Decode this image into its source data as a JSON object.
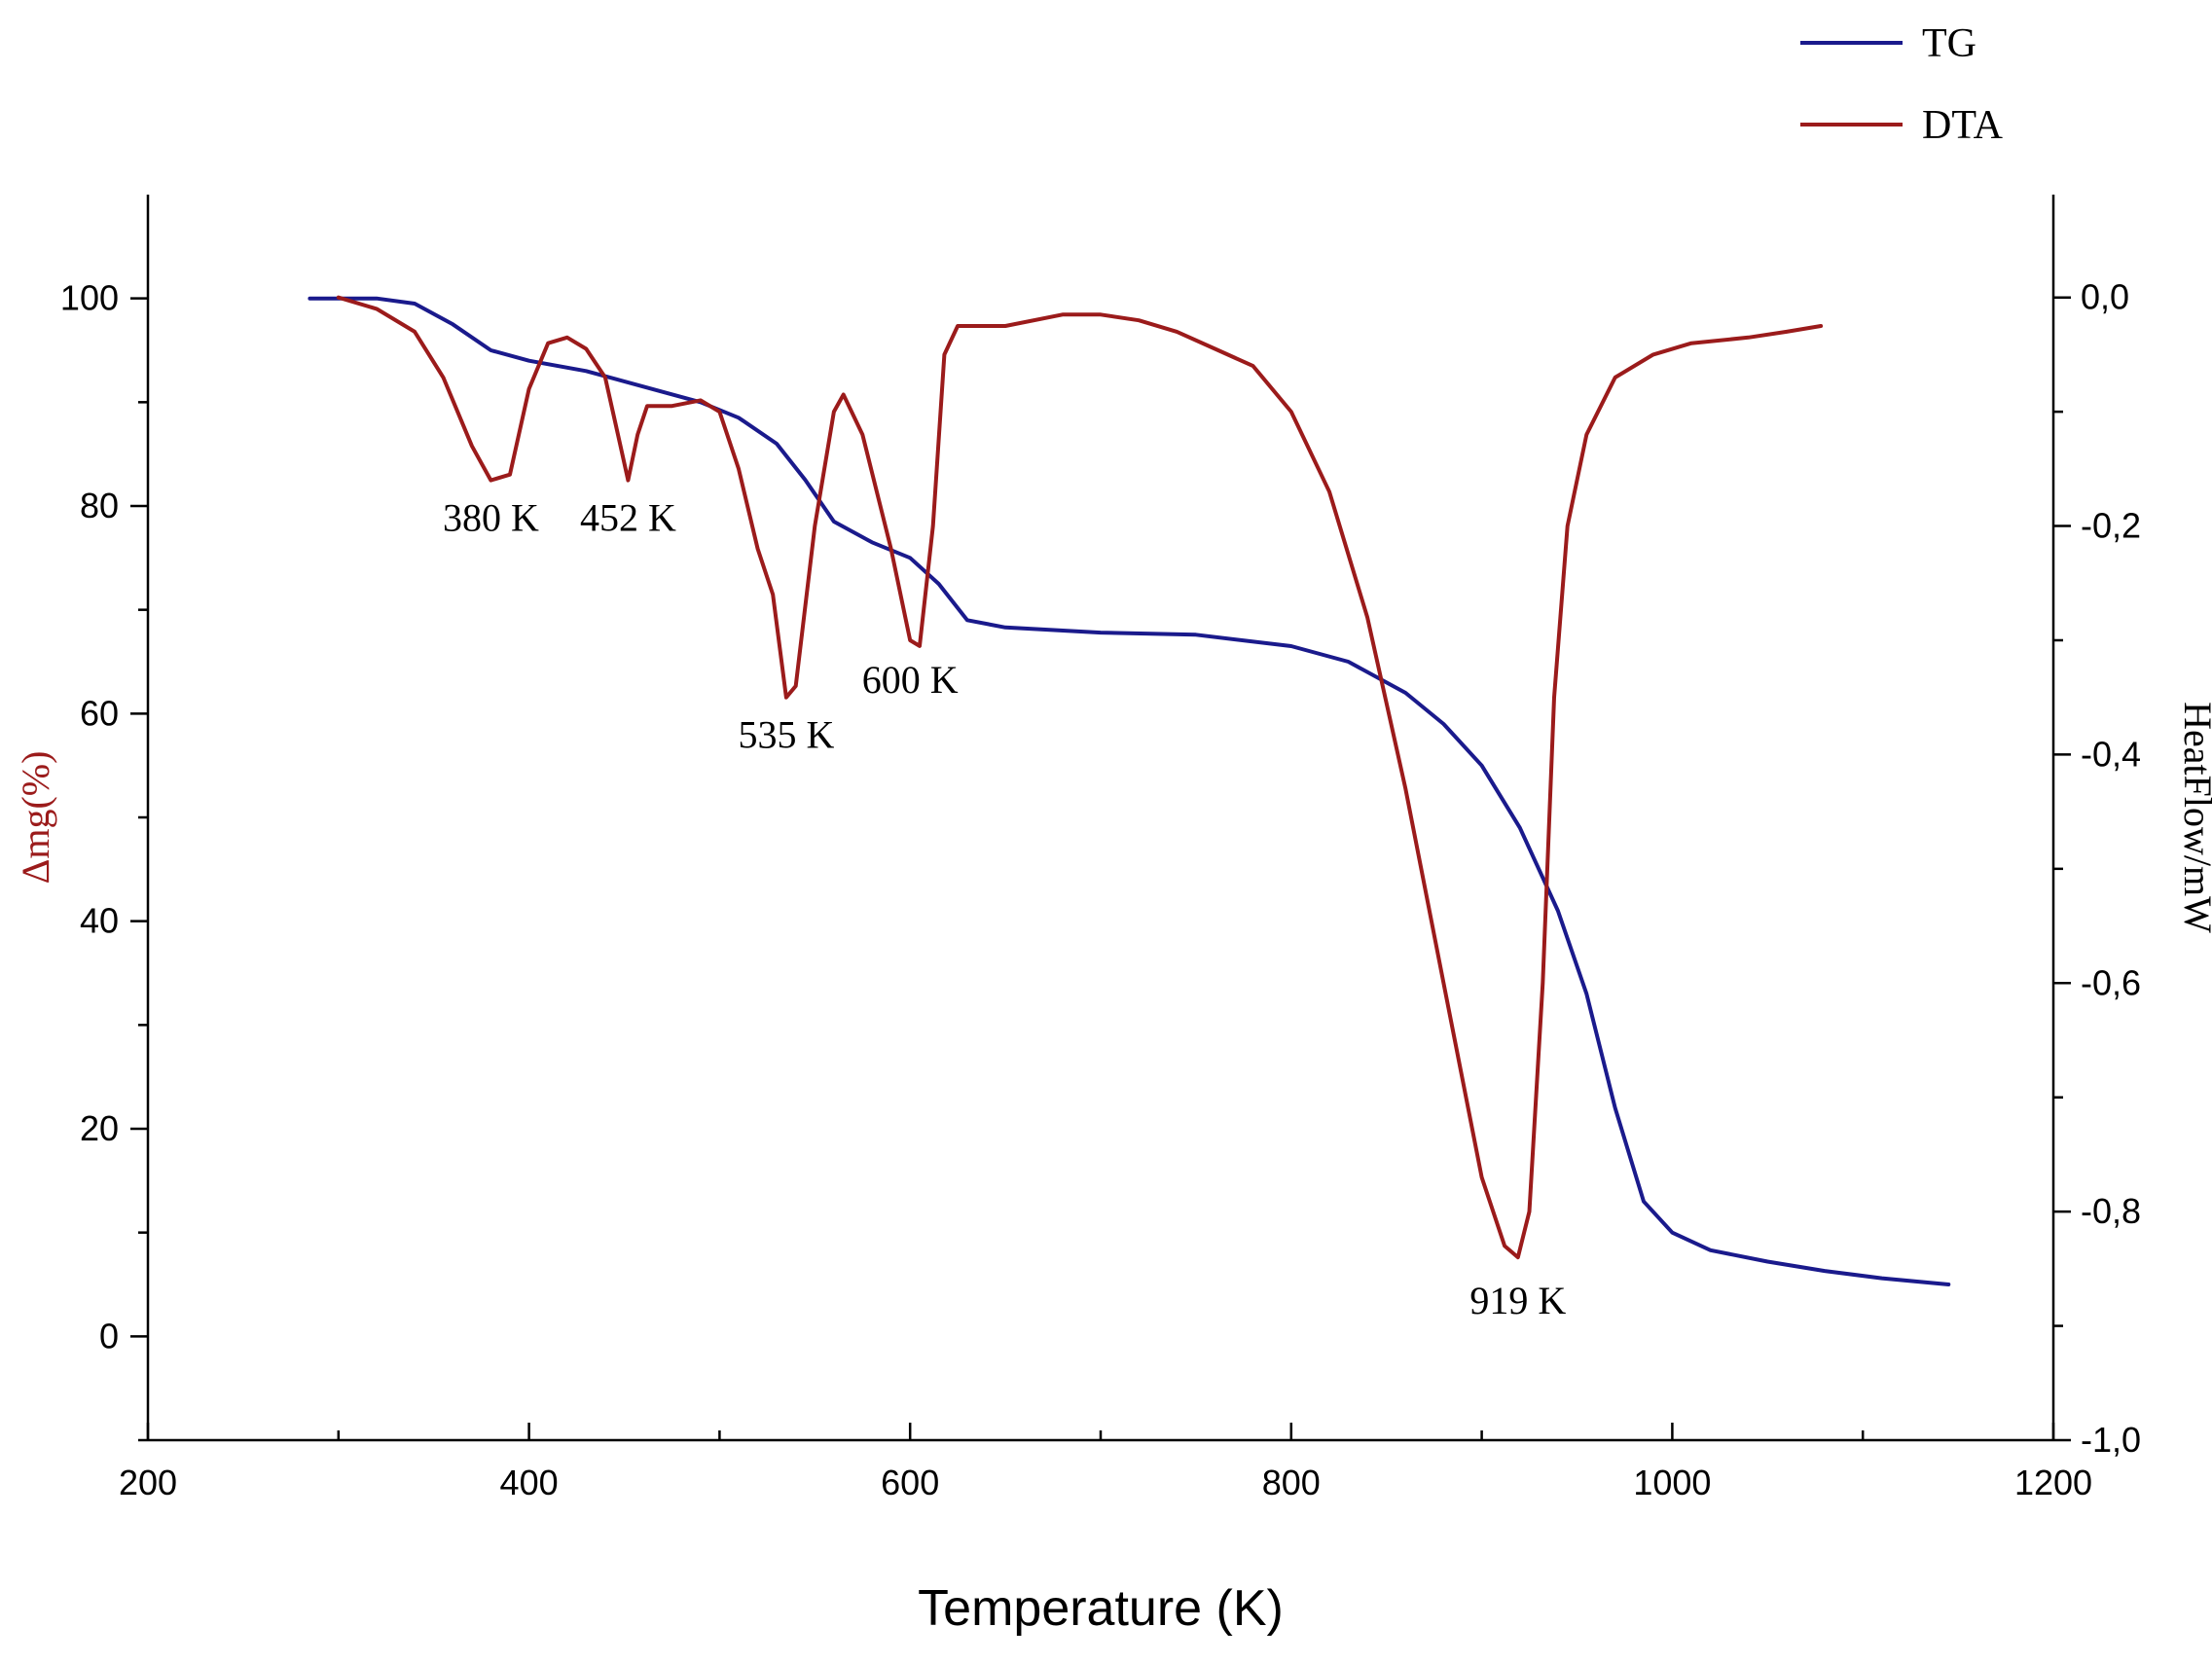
{
  "chart_data": {
    "type": "line",
    "title": "",
    "xlabel": "Temperature (K)",
    "ylabel_left": "Δmg(%)",
    "ylabel_right": "HeatFlow/mW",
    "xlim": [
      200,
      1200
    ],
    "ylim_left": [
      -10,
      110
    ],
    "ylim_right": [
      -1.0,
      0.09
    ],
    "x_ticks": [
      200,
      400,
      600,
      800,
      1000,
      1200
    ],
    "y_left_ticks": [
      0,
      20,
      40,
      60,
      80,
      100
    ],
    "y_right_ticks": [
      0.0,
      -0.2,
      -0.4,
      -0.6,
      -0.8,
      -1.0
    ],
    "y_right_tick_labels": [
      "0,0",
      "-0,2",
      "-0,4",
      "-0,6",
      "-0,8",
      "-1,0"
    ],
    "legend": {
      "placement": "top-right",
      "entries": [
        "TG",
        "DTA"
      ]
    },
    "colors": {
      "TG": "#1a1a8c",
      "DTA": "#9b1b1b"
    },
    "series": [
      {
        "name": "TG",
        "axis": "left",
        "points": [
          [
            285,
            100
          ],
          [
            320,
            100
          ],
          [
            340,
            99.5
          ],
          [
            360,
            97.5
          ],
          [
            380,
            95
          ],
          [
            400,
            94
          ],
          [
            430,
            93
          ],
          [
            460,
            91.5
          ],
          [
            490,
            90
          ],
          [
            510,
            88.5
          ],
          [
            530,
            86
          ],
          [
            545,
            82.5
          ],
          [
            560,
            78.5
          ],
          [
            580,
            76.5
          ],
          [
            600,
            75
          ],
          [
            615,
            72.5
          ],
          [
            630,
            69
          ],
          [
            650,
            68.3
          ],
          [
            700,
            67.8
          ],
          [
            750,
            67.6
          ],
          [
            800,
            66.5
          ],
          [
            830,
            65
          ],
          [
            860,
            62
          ],
          [
            880,
            59
          ],
          [
            900,
            55
          ],
          [
            920,
            49
          ],
          [
            940,
            41
          ],
          [
            955,
            33
          ],
          [
            970,
            22
          ],
          [
            985,
            13
          ],
          [
            1000,
            10
          ],
          [
            1020,
            8.3
          ],
          [
            1050,
            7.2
          ],
          [
            1080,
            6.3
          ],
          [
            1110,
            5.6
          ],
          [
            1145,
            5
          ]
        ]
      },
      {
        "name": "DTA",
        "axis": "right",
        "points": [
          [
            300,
            0.0
          ],
          [
            320,
            -0.01
          ],
          [
            340,
            -0.03
          ],
          [
            355,
            -0.07
          ],
          [
            370,
            -0.13
          ],
          [
            380,
            -0.16
          ],
          [
            390,
            -0.155
          ],
          [
            400,
            -0.08
          ],
          [
            410,
            -0.04
          ],
          [
            420,
            -0.035
          ],
          [
            430,
            -0.045
          ],
          [
            440,
            -0.07
          ],
          [
            448,
            -0.13
          ],
          [
            452,
            -0.16
          ],
          [
            457,
            -0.12
          ],
          [
            462,
            -0.095
          ],
          [
            475,
            -0.095
          ],
          [
            490,
            -0.09
          ],
          [
            500,
            -0.1
          ],
          [
            510,
            -0.15
          ],
          [
            520,
            -0.22
          ],
          [
            528,
            -0.26
          ],
          [
            535,
            -0.35
          ],
          [
            540,
            -0.34
          ],
          [
            550,
            -0.2
          ],
          [
            560,
            -0.1
          ],
          [
            565,
            -0.085
          ],
          [
            575,
            -0.12
          ],
          [
            590,
            -0.22
          ],
          [
            600,
            -0.3
          ],
          [
            605,
            -0.305
          ],
          [
            612,
            -0.2
          ],
          [
            618,
            -0.05
          ],
          [
            625,
            -0.025
          ],
          [
            650,
            -0.025
          ],
          [
            680,
            -0.015
          ],
          [
            700,
            -0.015
          ],
          [
            720,
            -0.02
          ],
          [
            740,
            -0.03
          ],
          [
            760,
            -0.045
          ],
          [
            780,
            -0.06
          ],
          [
            800,
            -0.1
          ],
          [
            820,
            -0.17
          ],
          [
            840,
            -0.28
          ],
          [
            860,
            -0.43
          ],
          [
            880,
            -0.6
          ],
          [
            900,
            -0.77
          ],
          [
            912,
            -0.83
          ],
          [
            919,
            -0.84
          ],
          [
            925,
            -0.8
          ],
          [
            932,
            -0.6
          ],
          [
            938,
            -0.35
          ],
          [
            945,
            -0.2
          ],
          [
            955,
            -0.12
          ],
          [
            970,
            -0.07
          ],
          [
            990,
            -0.05
          ],
          [
            1010,
            -0.04
          ],
          [
            1040,
            -0.035
          ],
          [
            1060,
            -0.03
          ],
          [
            1078,
            -0.025
          ]
        ]
      }
    ],
    "annotations": [
      {
        "text": "380 K",
        "x": 380,
        "y": -0.16,
        "axis": "right"
      },
      {
        "text": "452 K",
        "x": 452,
        "y": -0.16,
        "axis": "right"
      },
      {
        "text": "535 K",
        "x": 535,
        "y": -0.35,
        "axis": "right"
      },
      {
        "text": "600 K",
        "x": 600,
        "y": -0.305,
        "axis": "right"
      },
      {
        "text": "919 K",
        "x": 919,
        "y": -0.84,
        "axis": "right"
      }
    ]
  }
}
